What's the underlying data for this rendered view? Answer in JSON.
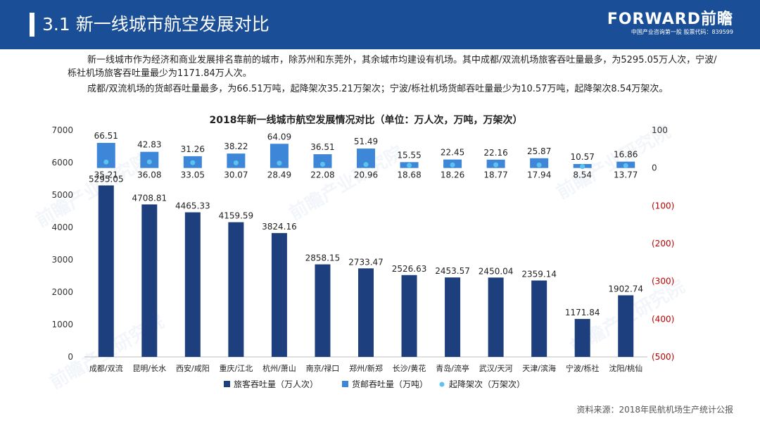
{
  "header": {
    "title": "3.1  新一线城市航空发展对比",
    "logo_main": "FORWARD前瞻",
    "logo_sub": "中国产业咨询第一股  股票代码：839599"
  },
  "intro": {
    "p1": "新一线城市作为经济和商业发展排名靠前的城市，除苏州和东莞外，其余城市均建设有机场。其中成都/双流机场旅客吞吐量最多，为5295.05万人次，宁波/栎社机场旅客吞吐量最少为1171.84万人次。",
    "p2": "成都/双流机场的货邮吞吐量最多，为66.51万吨，起降架次35.21万架次；宁波/栎社机场货邮吞吐量最少为10.57万吨，起降架次8.54万架次。"
  },
  "watermark": "前瞻产业研究院",
  "source": "资料来源：2018年民航机场生产统计公报",
  "colors": {
    "header": "#1a4e96",
    "passenger": "#1d3f7e",
    "cargo": "#3d86d8",
    "flights": "#5bc3f0",
    "right_axis": "#c00000"
  },
  "chart_data": {
    "type": "bar",
    "title": "2018年新一线城市航空发展情况对比（单位：万人次，万吨，万架次）",
    "categories": [
      "成都/双流",
      "昆明/长水",
      "西安/咸阳",
      "重庆/江北",
      "杭州/萧山",
      "南京/禄口",
      "郑州/新郑",
      "长沙/黄花",
      "青岛/流亭",
      "武汉/天河",
      "天津/滨海",
      "宁波/栎社",
      "沈阳/桃仙"
    ],
    "series": [
      {
        "name": "旅客吞吐量（万人次）",
        "axis": "left",
        "kind": "bar",
        "values": [
          5295.05,
          4708.81,
          4465.33,
          4159.59,
          3824.16,
          2858.15,
          2733.47,
          2526.63,
          2453.57,
          2450.04,
          2359.14,
          1171.84,
          1902.74
        ]
      },
      {
        "name": "货邮吞吐量（万吨）",
        "axis": "right",
        "kind": "bar",
        "values": [
          66.51,
          42.83,
          31.26,
          38.22,
          64.09,
          36.51,
          51.49,
          15.55,
          22.45,
          22.16,
          25.87,
          10.57,
          16.86
        ]
      },
      {
        "name": "起降架次（万架次）",
        "axis": "right",
        "kind": "point",
        "values": [
          35.21,
          36.08,
          33.05,
          30.07,
          28.49,
          22.08,
          20.96,
          18.68,
          18.26,
          18.77,
          17.94,
          8.54,
          13.77
        ]
      }
    ],
    "y_left": {
      "min": 0,
      "max": 7000,
      "ticks": [
        "0",
        "1000",
        "2000",
        "3000",
        "4000",
        "5000",
        "6000",
        "7000"
      ]
    },
    "y_right": {
      "min": -500,
      "max": 100,
      "ticks": [
        "100",
        "0",
        "(100)",
        "(200)",
        "(300)",
        "(400)",
        "(500)"
      ]
    },
    "legend": [
      "旅客吞吐量（万人次）",
      "货邮吞吐量（万吨）",
      "起降架次（万架次）"
    ],
    "legend_position": "bottom"
  }
}
